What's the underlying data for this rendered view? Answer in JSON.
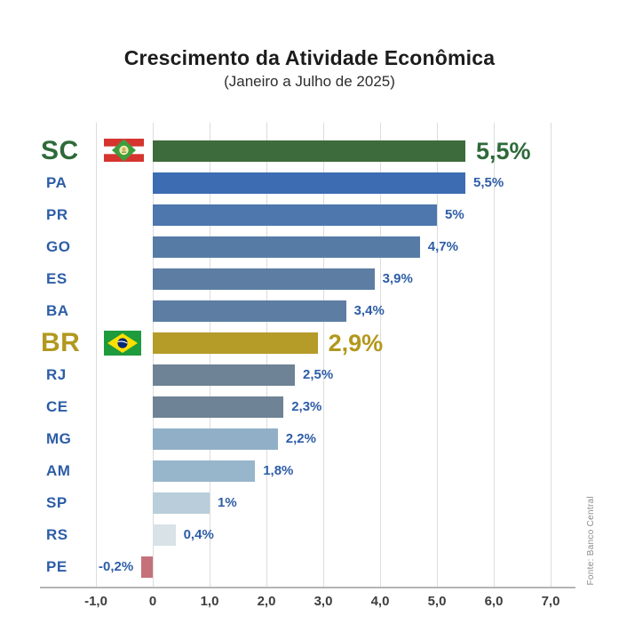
{
  "header": {
    "title": "Crescimento da Atividade Econômica",
    "subtitle": "(Janeiro a Julho de 2025)"
  },
  "source_note": "Fonte: Banco Central",
  "colors": {
    "highlight_green_text": "#2f6a3a",
    "highlight_gold_text": "#b2981d",
    "label_blue": "#2d5da7",
    "grid": "#dcdcdc",
    "axis": "#b5b5b5",
    "tick_text": "#3d3d3d",
    "source_text": "#8c8c8c"
  },
  "chart_data": {
    "type": "bar",
    "orientation": "horizontal",
    "title": "Crescimento da Atividade Econômica",
    "subtitle": "(Janeiro a Julho de 2025)",
    "xlabel": "",
    "ylabel": "",
    "xlim": [
      -1.4,
      7.5
    ],
    "grid": true,
    "x_ticks": [
      {
        "value": -1,
        "label": "-1,0"
      },
      {
        "value": 0,
        "label": "0"
      },
      {
        "value": 1,
        "label": "1,0"
      },
      {
        "value": 2,
        "label": "2,0"
      },
      {
        "value": 3,
        "label": "3,0"
      },
      {
        "value": 4,
        "label": "4,0"
      },
      {
        "value": 5,
        "label": "5,0"
      },
      {
        "value": 6,
        "label": "6,0"
      },
      {
        "value": 7,
        "label": "7,0"
      }
    ],
    "rows": [
      {
        "code": "SC",
        "value": 5.5,
        "value_label": "5,5%",
        "bar_color": "#3e6b3b",
        "highlight": "green",
        "flag": "sc-flag-icon"
      },
      {
        "code": "PA",
        "value": 5.5,
        "value_label": "5,5%",
        "bar_color": "#3e6cb3",
        "highlight": null,
        "flag": null
      },
      {
        "code": "PR",
        "value": 5.0,
        "value_label": "5%",
        "bar_color": "#4d77ad",
        "highlight": null,
        "flag": null
      },
      {
        "code": "GO",
        "value": 4.7,
        "value_label": "4,7%",
        "bar_color": "#567ca6",
        "highlight": null,
        "flag": null
      },
      {
        "code": "ES",
        "value": 3.9,
        "value_label": "3,9%",
        "bar_color": "#5d7da3",
        "highlight": null,
        "flag": null
      },
      {
        "code": "BA",
        "value": 3.4,
        "value_label": "3,4%",
        "bar_color": "#5d7da3",
        "highlight": null,
        "flag": null
      },
      {
        "code": "BR",
        "value": 2.9,
        "value_label": "2,9%",
        "bar_color": "#b59b28",
        "highlight": "gold",
        "flag": "br-flag-icon"
      },
      {
        "code": "RJ",
        "value": 2.5,
        "value_label": "2,5%",
        "bar_color": "#6e8395",
        "highlight": null,
        "flag": null
      },
      {
        "code": "CE",
        "value": 2.3,
        "value_label": "2,3%",
        "bar_color": "#6e8395",
        "highlight": null,
        "flag": null
      },
      {
        "code": "MG",
        "value": 2.2,
        "value_label": "2,2%",
        "bar_color": "#91b0c8",
        "highlight": null,
        "flag": null
      },
      {
        "code": "AM",
        "value": 1.8,
        "value_label": "1,8%",
        "bar_color": "#98b6cb",
        "highlight": null,
        "flag": null
      },
      {
        "code": "SP",
        "value": 1.0,
        "value_label": "1%",
        "bar_color": "#b9cdda",
        "highlight": null,
        "flag": null
      },
      {
        "code": "RS",
        "value": 0.4,
        "value_label": "0,4%",
        "bar_color": "#d8e2e7",
        "highlight": null,
        "flag": null
      },
      {
        "code": "PE",
        "value": -0.2,
        "value_label": "-0,2%",
        "bar_color": "#c4717c",
        "highlight": null,
        "flag": null
      }
    ]
  }
}
